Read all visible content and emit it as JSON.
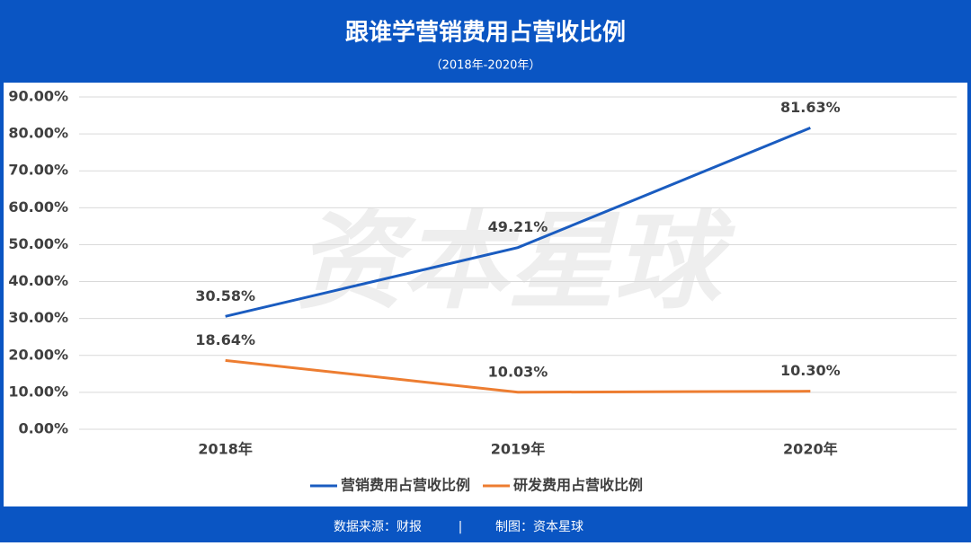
{
  "chart_data": {
    "type": "line",
    "title": "跟谁学营销费用占营收比例",
    "subtitle": "（2018年-2020年）",
    "watermark": "资本星球",
    "categories": [
      "2018年",
      "2019年",
      "2020年"
    ],
    "series": [
      {
        "name": "营销费用占营收比例",
        "color": "#1a5cc0",
        "values": [
          30.58,
          49.21,
          81.63
        ],
        "value_labels": [
          "30.58%",
          "49.21%",
          "81.63%"
        ]
      },
      {
        "name": "研发费用占营收比例",
        "color": "#ed7d31",
        "values": [
          18.64,
          10.03,
          10.3
        ],
        "value_labels": [
          "18.64%",
          "10.03%",
          "10.30%"
        ]
      }
    ],
    "ylim": [
      0,
      90
    ],
    "yticks": [
      {
        "value": 0,
        "label": "0.00%"
      },
      {
        "value": 10,
        "label": "10.00%"
      },
      {
        "value": 20,
        "label": "20.00%"
      },
      {
        "value": 30,
        "label": "30.00%"
      },
      {
        "value": 40,
        "label": "40.00%"
      },
      {
        "value": 50,
        "label": "50.00%"
      },
      {
        "value": 60,
        "label": "60.00%"
      },
      {
        "value": 70,
        "label": "70.00%"
      },
      {
        "value": 80,
        "label": "80.00%"
      },
      {
        "value": 90,
        "label": "90.00%"
      }
    ],
    "grid": true,
    "legend": "bottom"
  },
  "footer": {
    "source": "数据来源：财报",
    "separator": "|",
    "credit": "制图：资本星球"
  }
}
